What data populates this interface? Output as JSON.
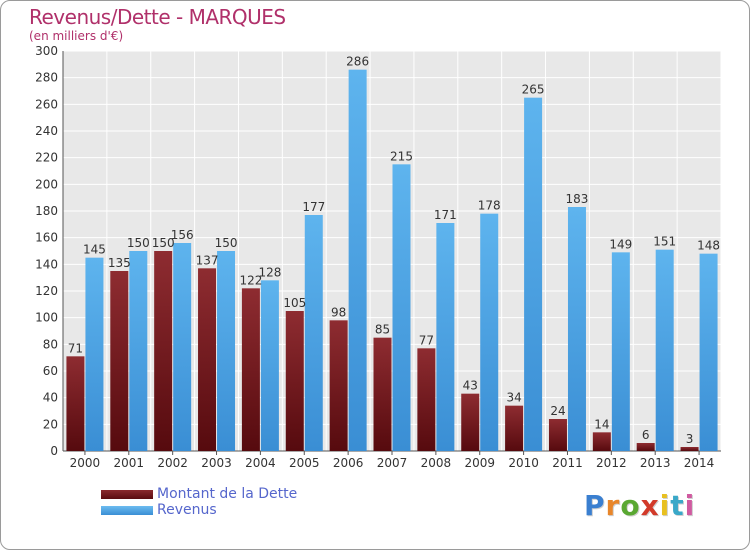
{
  "header": {
    "title": "Revenus/Dette - MARQUES",
    "subtitle": "(en milliers d'€)"
  },
  "legend": {
    "dette_label": "Montant de la Dette",
    "revenus_label": "Revenus"
  },
  "logo": {
    "text": "Proxiti",
    "colors": [
      "#3a7fd0",
      "#e8862a",
      "#5aa832",
      "#d23a2a",
      "#e8c020",
      "#3aa8c8",
      "#d05aa0"
    ]
  },
  "colors": {
    "dette": "#6e1a1e",
    "revenus": "#4aa3e6",
    "title": "#b0306a",
    "legend_text": "#5566cc"
  },
  "chart_data": {
    "type": "bar",
    "title": "Revenus/Dette - MARQUES",
    "subtitle": "(en milliers d'€)",
    "categories": [
      "2000",
      "2001",
      "2002",
      "2003",
      "2004",
      "2005",
      "2006",
      "2007",
      "2008",
      "2009",
      "2010",
      "2011",
      "2012",
      "2013",
      "2014"
    ],
    "series": [
      {
        "name": "Montant de la Dette",
        "values": [
          71,
          135,
          150,
          137,
          122,
          105,
          98,
          85,
          77,
          43,
          34,
          24,
          14,
          6,
          3
        ]
      },
      {
        "name": "Revenus",
        "values": [
          145,
          150,
          156,
          150,
          128,
          177,
          286,
          215,
          171,
          178,
          265,
          183,
          149,
          151,
          148
        ]
      }
    ],
    "ylim": [
      0,
      300
    ],
    "yticks": [
      0,
      20,
      40,
      60,
      80,
      100,
      120,
      140,
      160,
      180,
      200,
      220,
      240,
      260,
      280,
      300
    ],
    "grid": true,
    "legend_position": "bottom-left"
  }
}
